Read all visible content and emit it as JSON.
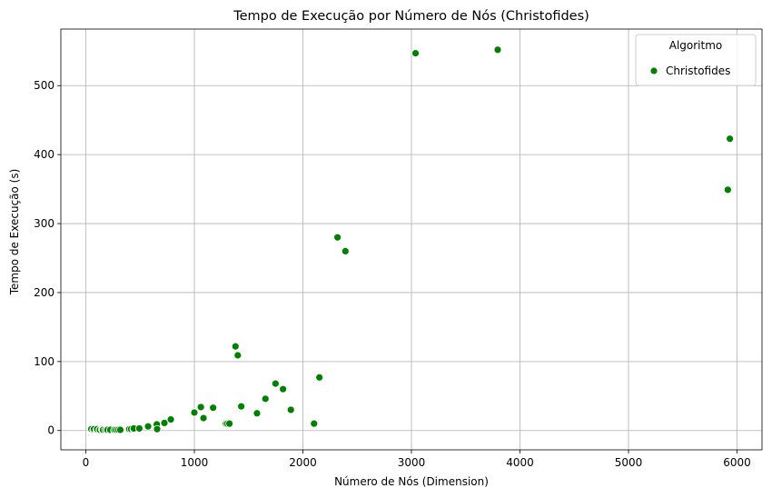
{
  "chart_data": {
    "type": "scatter",
    "title": "Tempo de Execução por Número de Nós (Christofides)",
    "xlabel": "Número de Nós (Dimension)",
    "ylabel": "Tempo de Execução (s)",
    "xlim": [
      -230,
      6230
    ],
    "ylim": [
      -28,
      582
    ],
    "xticks": [
      0,
      1000,
      2000,
      3000,
      4000,
      5000,
      6000
    ],
    "yticks": [
      0,
      100,
      200,
      300,
      400,
      500
    ],
    "grid": true,
    "legend": {
      "title": "Algoritmo",
      "position": "top-right",
      "entries": [
        "Christofides"
      ]
    },
    "series": [
      {
        "name": "Christofides",
        "color": "#008000",
        "points": [
          {
            "x": 51,
            "y": 2
          },
          {
            "x": 70,
            "y": 1
          },
          {
            "x": 76,
            "y": 2
          },
          {
            "x": 99,
            "y": 1
          },
          {
            "x": 100,
            "y": 1
          },
          {
            "x": 101,
            "y": 1
          },
          {
            "x": 105,
            "y": 2
          },
          {
            "x": 127,
            "y": 1
          },
          {
            "x": 130,
            "y": 1
          },
          {
            "x": 150,
            "y": 2
          },
          {
            "x": 152,
            "y": 1
          },
          {
            "x": 159,
            "y": 1
          },
          {
            "x": 180,
            "y": 1
          },
          {
            "x": 195,
            "y": 1
          },
          {
            "x": 200,
            "y": 1
          },
          {
            "x": 225,
            "y": 0
          },
          {
            "x": 226,
            "y": 1
          },
          {
            "x": 262,
            "y": 0
          },
          {
            "x": 264,
            "y": 1
          },
          {
            "x": 280,
            "y": 1
          },
          {
            "x": 299,
            "y": 1
          },
          {
            "x": 318,
            "y": 1
          },
          {
            "x": 400,
            "y": 2
          },
          {
            "x": 417,
            "y": 2
          },
          {
            "x": 439,
            "y": 2
          },
          {
            "x": 442,
            "y": 3
          },
          {
            "x": 493,
            "y": 3
          },
          {
            "x": 574,
            "y": 6
          },
          {
            "x": 654,
            "y": 9
          },
          {
            "x": 657,
            "y": 2
          },
          {
            "x": 724,
            "y": 11
          },
          {
            "x": 783,
            "y": 16
          },
          {
            "x": 1000,
            "y": 26
          },
          {
            "x": 1060,
            "y": 34
          },
          {
            "x": 1084,
            "y": 18
          },
          {
            "x": 1173,
            "y": 33
          },
          {
            "x": 1291,
            "y": 10
          },
          {
            "x": 1304,
            "y": 10
          },
          {
            "x": 1323,
            "y": 10
          },
          {
            "x": 1379,
            "y": 122
          },
          {
            "x": 1400,
            "y": 109
          },
          {
            "x": 1432,
            "y": 35
          },
          {
            "x": 1577,
            "y": 25
          },
          {
            "x": 1655,
            "y": 46
          },
          {
            "x": 1748,
            "y": 68
          },
          {
            "x": 1817,
            "y": 60
          },
          {
            "x": 1889,
            "y": 30
          },
          {
            "x": 2103,
            "y": 10
          },
          {
            "x": 2152,
            "y": 77
          },
          {
            "x": 2319,
            "y": 280
          },
          {
            "x": 2392,
            "y": 260
          },
          {
            "x": 3038,
            "y": 547
          },
          {
            "x": 3795,
            "y": 552
          },
          {
            "x": 5915,
            "y": 349
          },
          {
            "x": 5934,
            "y": 423
          }
        ]
      }
    ]
  }
}
